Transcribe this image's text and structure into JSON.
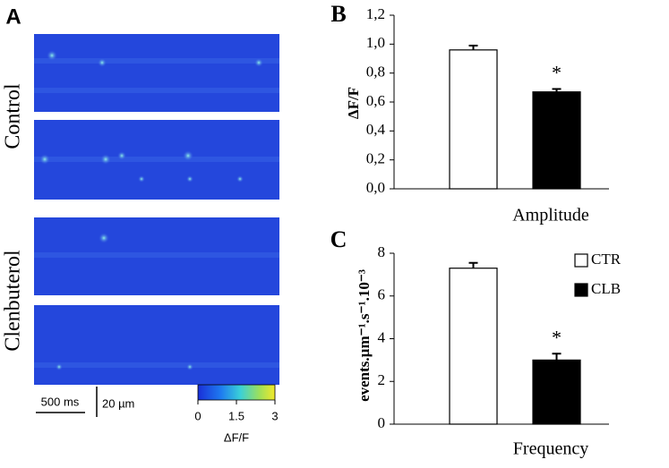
{
  "panel_a": {
    "label": "A",
    "row_labels": [
      "Control",
      "Clenbuterol"
    ],
    "time_scale": "500 ms",
    "space_scale": "20 µm",
    "colorbar": {
      "ticks": [
        0,
        1.5,
        3
      ],
      "label": "ΔF/F",
      "lim": [
        0,
        3
      ]
    }
  },
  "chart_data": [
    {
      "type": "bar",
      "title": "B",
      "ylabel": "ΔF/F",
      "categories": [
        "Amplitude"
      ],
      "series": [
        {
          "color": "#ffffff",
          "values": [
            0.96
          ],
          "errors": [
            0.03
          ]
        },
        {
          "color": "#000000",
          "values": [
            0.67
          ],
          "errors": [
            0.02
          ]
        }
      ],
      "annotation": "*",
      "ylim": [
        0,
        1.2
      ],
      "yticks": [
        {
          "value": 0,
          "label": "0,0"
        },
        {
          "value": 0.2,
          "label": "0,2"
        },
        {
          "value": 0.4,
          "label": "0,4"
        },
        {
          "value": 0.6,
          "label": "0,6"
        },
        {
          "value": 0.8,
          "label": "0,8"
        },
        {
          "value": 1.0,
          "label": "1,0"
        },
        {
          "value": 1.2,
          "label": "1,2"
        }
      ],
      "legend": false
    },
    {
      "type": "bar",
      "title": "C",
      "ylabel": "events.µm⁻¹.s⁻¹.10⁻³",
      "categories": [
        "Frequency"
      ],
      "series": [
        {
          "name": "CTR",
          "color": "#ffffff",
          "values": [
            7.3
          ],
          "errors": [
            0.25
          ]
        },
        {
          "name": "CLB",
          "color": "#000000",
          "values": [
            3.0
          ],
          "errors": [
            0.3
          ]
        }
      ],
      "annotation": "*",
      "ylim": [
        0,
        8
      ],
      "yticks": [
        0,
        2,
        4,
        6,
        8
      ],
      "legend": true,
      "legend_position": "upper right"
    }
  ]
}
